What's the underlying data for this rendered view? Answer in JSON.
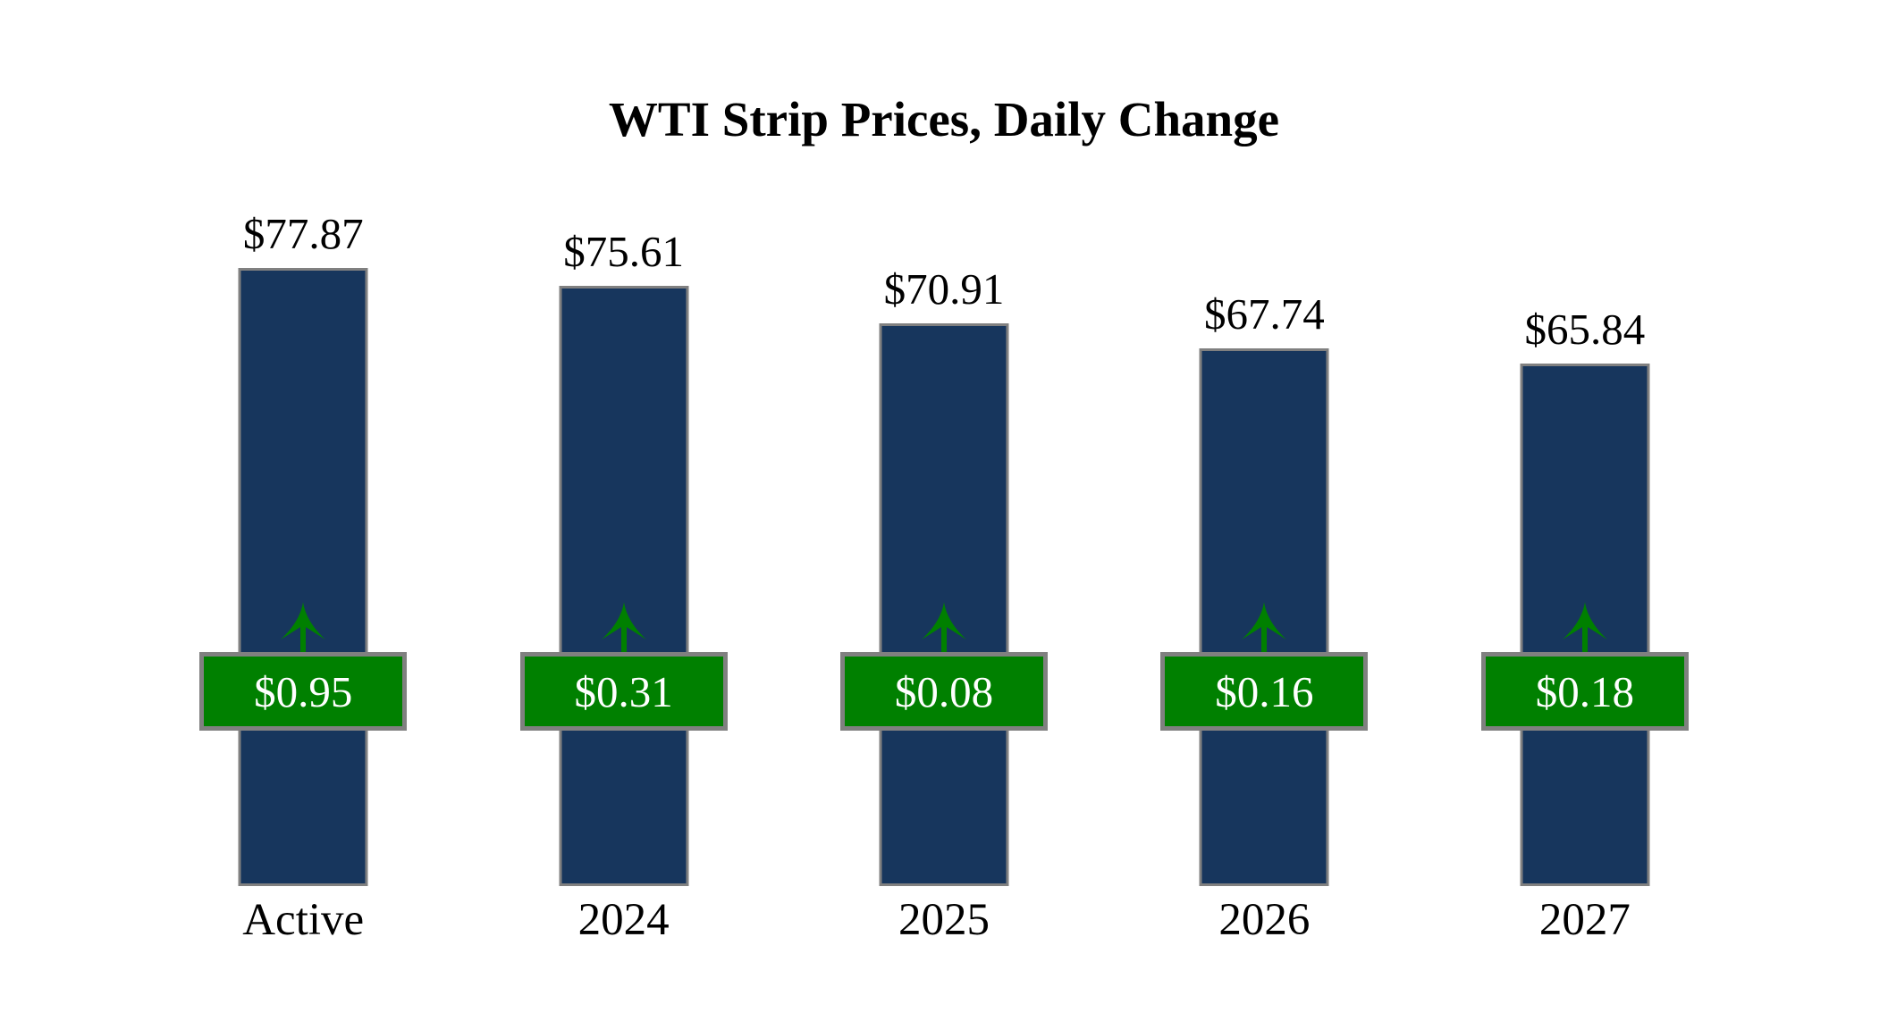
{
  "chart_data": {
    "type": "bar",
    "title": "WTI Strip Prices, Daily Change",
    "categories": [
      "Active",
      "2024",
      "2025",
      "2026",
      "2027"
    ],
    "series": [
      {
        "name": "Strip Price",
        "values": [
          77.87,
          75.61,
          70.91,
          67.74,
          65.84
        ],
        "labels": [
          "$77.87",
          "$75.61",
          "$70.91",
          "$67.74",
          "$65.84"
        ]
      },
      {
        "name": "Daily Change",
        "values": [
          0.95,
          0.31,
          0.08,
          0.16,
          0.18
        ],
        "labels": [
          "$0.95",
          "$0.31",
          "$0.08",
          "$0.16",
          "$0.18"
        ],
        "direction": "up"
      }
    ],
    "xlabel": "",
    "ylabel": "",
    "ylim": [
      0,
      80
    ],
    "grid": false,
    "legend_position": "none",
    "colors": {
      "bar_fill": "#17365d",
      "bar_border": "#808080",
      "badge_fill": "#008000",
      "badge_border": "#808080",
      "badge_text": "#ffffff",
      "arrow": "#008000",
      "label_text": "#000000",
      "background": "#ffffff"
    }
  }
}
